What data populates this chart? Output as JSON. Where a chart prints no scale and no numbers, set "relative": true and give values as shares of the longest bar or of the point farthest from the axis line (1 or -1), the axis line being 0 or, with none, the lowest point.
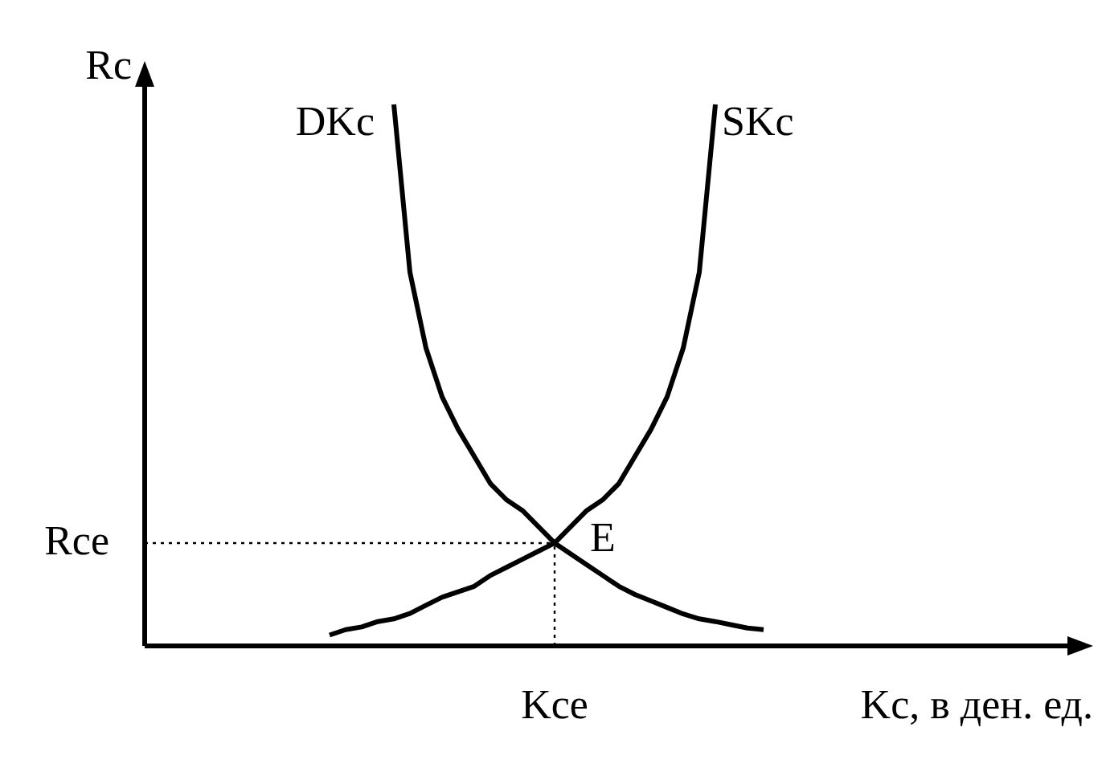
{
  "chart_data": {
    "type": "line",
    "relative": true,
    "xlabel": "Kc, в ден. ед.",
    "ylabel": "Rc",
    "legend": false,
    "categories": [
      null,
      null,
      null,
      null,
      null,
      null,
      null,
      null,
      null,
      null,
      null,
      null,
      null,
      null,
      null,
      null,
      null,
      null,
      null,
      null,
      null,
      null,
      null,
      null,
      null,
      null,
      null,
      null
    ],
    "series": [
      {
        "name": "DKc",
        "color": "#000000",
        "values": [
          null,
          null,
          null,
          null,
          1,
          0.69,
          0.55,
          0.46,
          0.4,
          0.35,
          0.3,
          0.27,
          0.25,
          0.22,
          0.19,
          0.17,
          0.15,
          0.13,
          0.11,
          0.095,
          0.083,
          0.071,
          0.059,
          0.05,
          0.045,
          0.039,
          0.033,
          0.03
        ]
      },
      {
        "name": "SKc",
        "color": "#000000",
        "values": [
          0.02,
          0.03,
          0.035,
          0.045,
          0.05,
          0.06,
          0.075,
          0.09,
          0.1,
          0.11,
          0.13,
          0.145,
          0.16,
          0.175,
          0.19,
          0.22,
          0.25,
          0.27,
          0.3,
          0.35,
          0.4,
          0.46,
          0.55,
          0.69,
          1,
          null,
          null,
          null
        ]
      }
    ],
    "ref_lines": [
      {
        "axis": "y",
        "value": 0.19,
        "label": "Rce",
        "line_style": "dotted"
      }
    ],
    "annotations": [
      "E",
      "Kce"
    ]
  }
}
